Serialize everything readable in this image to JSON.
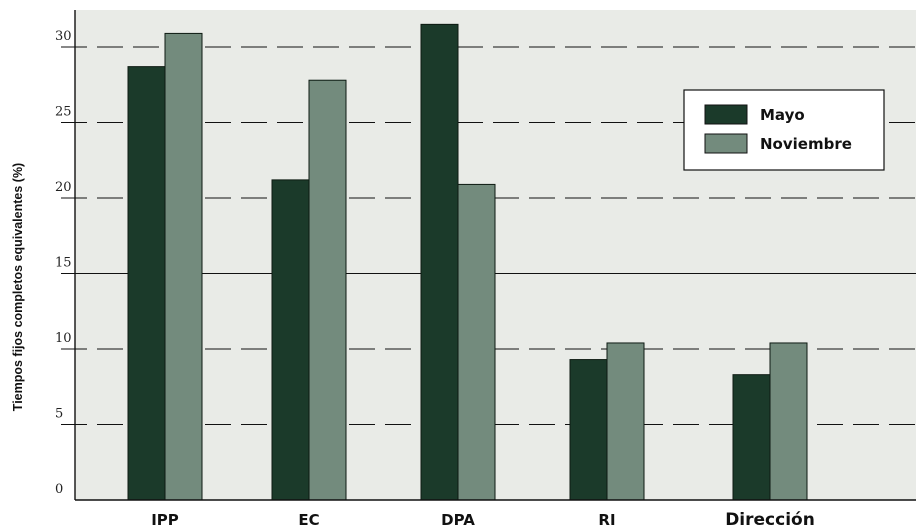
{
  "chart_data": {
    "type": "bar",
    "title": "",
    "xlabel": "",
    "ylabel": "Tiempos fijos completos equivalentes (%)",
    "ylim": [
      0,
      32.5
    ],
    "yticks": [
      "0",
      "5",
      "10",
      "15",
      "20",
      "25",
      "30"
    ],
    "categories": [
      "IPP",
      "EC",
      "DPA",
      "RI",
      "Dirección"
    ],
    "series": [
      {
        "name": "Mayo",
        "values": [
          28.7,
          21.2,
          31.5,
          9.3,
          8.3
        ]
      },
      {
        "name": "Noviembre",
        "values": [
          30.9,
          27.8,
          20.9,
          10.4,
          10.4
        ]
      }
    ],
    "legend_position": "top-right",
    "grid": "dashed horizontal at major ticks",
    "colors": {
      "plot_bg": "#e9ebe7",
      "mayo": "#1b3a2a",
      "noviembre": "#738b7d",
      "bar_outline": "#0d1a12",
      "grid": "#111111"
    }
  }
}
